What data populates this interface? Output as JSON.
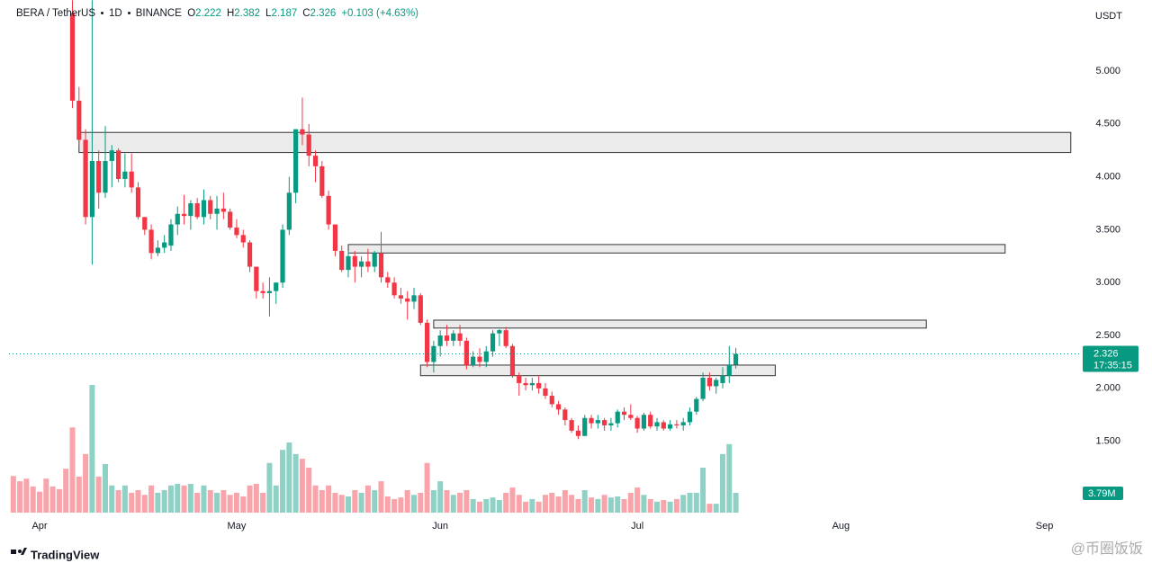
{
  "chart_data": {
    "type": "candlestick",
    "symbol": "BERA / TetherUS",
    "interval": "1D",
    "exchange": "BINANCE",
    "currency": "USDT",
    "ohlc_labels": [
      "O",
      "H",
      "L",
      "C"
    ],
    "change": "+0.103 (+4.63%)",
    "countdown": "17:35:15",
    "volume_label": "3.79M",
    "branding": "TradingView",
    "watermark": "@币圈饭饭",
    "up_color": "#089981",
    "down_color": "#f23645",
    "xlim": [
      -4.66,
      158.4
    ],
    "ylim": [
      0.825,
      5.672
    ],
    "volume_lim": [
      0,
      98
    ],
    "xticks": [
      {
        "value": 0,
        "label": "Apr"
      },
      {
        "value": 30,
        "label": "May"
      },
      {
        "value": 61,
        "label": "Jun"
      },
      {
        "value": 91,
        "label": "Jul"
      },
      {
        "value": 122,
        "label": "Aug"
      },
      {
        "value": 153,
        "label": "Sep"
      }
    ],
    "yticks": [
      {
        "value": 1.5,
        "label": "1.500"
      },
      {
        "value": 2,
        "label": "2.000"
      },
      {
        "value": 2.5,
        "label": "2.500"
      },
      {
        "value": 3,
        "label": "3.000"
      },
      {
        "value": 3.5,
        "label": "3.500"
      },
      {
        "value": 4,
        "label": "4.000"
      },
      {
        "value": 4.5,
        "label": "4.500"
      },
      {
        "value": 5,
        "label": "5.000"
      }
    ],
    "x": [
      -4,
      -3,
      -2,
      -1,
      0,
      1,
      2,
      3,
      4,
      5,
      6,
      7,
      8,
      9,
      10,
      11,
      12,
      13,
      14,
      15,
      16,
      17,
      18,
      19,
      20,
      21,
      22,
      23,
      24,
      25,
      26,
      27,
      28,
      29,
      30,
      31,
      32,
      33,
      34,
      35,
      36,
      37,
      38,
      39,
      40,
      41,
      42,
      43,
      44,
      45,
      46,
      47,
      48,
      49,
      50,
      51,
      52,
      53,
      54,
      55,
      56,
      57,
      58,
      59,
      60,
      61,
      62,
      63,
      64,
      65,
      66,
      67,
      68,
      69,
      70,
      71,
      72,
      73,
      74,
      75,
      76,
      77,
      78,
      79,
      80,
      81,
      82,
      83,
      84,
      85,
      86,
      87,
      88,
      89,
      90,
      91,
      92,
      93,
      94,
      95,
      96,
      97,
      98,
      99,
      100,
      101,
      102,
      103,
      104,
      105,
      106
    ],
    "open": [
      null,
      null,
      null,
      null,
      null,
      null,
      null,
      null,
      null,
      5.55,
      4.72,
      4.35,
      3.62,
      4.15,
      3.85,
      4.15,
      4.25,
      3.98,
      4.05,
      3.9,
      3.62,
      3.5,
      3.28,
      3.33,
      3.35,
      3.55,
      3.65,
      3.63,
      3.75,
      3.62,
      3.78,
      3.65,
      3.7,
      3.67,
      3.52,
      3.45,
      3.38,
      3.15,
      2.92,
      2.9,
      2.92,
      3.0,
      3.5,
      3.85,
      4.45,
      4.4,
      4.2,
      4.1,
      3.82,
      3.55,
      3.3,
      3.12,
      3.25,
      3.15,
      3.2,
      3.15,
      3.28,
      3.05,
      3.0,
      2.88,
      2.85,
      2.82,
      2.88,
      2.62,
      2.25,
      2.4,
      2.5,
      2.45,
      2.52,
      2.45,
      2.22,
      2.3,
      2.25,
      2.35,
      2.52,
      2.55,
      2.4,
      2.12,
      2.05,
      2.03,
      2.05,
      2.0,
      1.93,
      1.85,
      1.8,
      1.7,
      1.6,
      1.55,
      1.72,
      1.67,
      1.7,
      1.65,
      1.67,
      1.78,
      1.75,
      1.72,
      1.62,
      1.75,
      1.64,
      1.68,
      1.62,
      1.66,
      1.65,
      1.68,
      1.78,
      1.9,
      2.1,
      2.02,
      2.05,
      2.12,
      2.222
    ],
    "high": [
      null,
      null,
      null,
      null,
      null,
      null,
      null,
      null,
      null,
      5.67,
      4.85,
      4.45,
      5.67,
      4.25,
      4.48,
      4.3,
      4.27,
      4.22,
      4.22,
      3.95,
      3.62,
      3.55,
      3.4,
      3.45,
      3.6,
      3.72,
      3.83,
      3.78,
      3.8,
      3.88,
      3.82,
      3.82,
      3.85,
      3.7,
      3.6,
      3.5,
      3.4,
      3.15,
      3.0,
      3.05,
      3.0,
      3.55,
      4.0,
      4.45,
      4.75,
      4.5,
      4.25,
      4.15,
      3.87,
      3.55,
      3.35,
      3.3,
      3.3,
      3.25,
      3.32,
      3.3,
      3.48,
      3.1,
      3.05,
      2.95,
      2.92,
      2.95,
      2.9,
      2.65,
      2.45,
      2.55,
      2.6,
      2.55,
      2.6,
      2.48,
      2.35,
      2.38,
      2.4,
      2.55,
      2.56,
      2.58,
      2.42,
      2.15,
      2.1,
      2.1,
      2.12,
      2.05,
      1.97,
      1.88,
      1.82,
      1.72,
      1.65,
      1.75,
      1.75,
      1.75,
      1.72,
      1.72,
      1.8,
      1.82,
      1.85,
      1.74,
      1.77,
      1.78,
      1.72,
      1.7,
      1.7,
      1.7,
      1.72,
      1.82,
      1.92,
      2.15,
      2.15,
      2.1,
      2.2,
      2.4,
      2.382
    ],
    "low": [
      null,
      null,
      null,
      null,
      null,
      null,
      null,
      null,
      null,
      4.65,
      4.3,
      3.55,
      3.17,
      3.7,
      3.8,
      3.9,
      3.95,
      3.9,
      3.85,
      3.6,
      3.45,
      3.22,
      3.25,
      3.28,
      3.3,
      3.45,
      3.55,
      3.5,
      3.6,
      3.55,
      3.6,
      3.5,
      3.6,
      3.5,
      3.42,
      3.33,
      3.1,
      2.85,
      2.85,
      2.68,
      2.8,
      2.95,
      3.45,
      3.75,
      4.3,
      4.1,
      3.95,
      3.8,
      3.5,
      3.25,
      3.1,
      3.05,
      3.0,
      3.05,
      3.1,
      3.1,
      3.0,
      2.95,
      2.85,
      2.8,
      2.65,
      2.75,
      2.6,
      2.2,
      2.15,
      2.3,
      2.4,
      2.4,
      2.4,
      2.18,
      2.2,
      2.2,
      2.2,
      2.3,
      2.4,
      2.38,
      2.1,
      1.93,
      1.98,
      1.98,
      1.95,
      1.9,
      1.82,
      1.75,
      1.65,
      1.58,
      1.52,
      1.55,
      1.62,
      1.62,
      1.6,
      1.6,
      1.63,
      1.7,
      1.7,
      1.58,
      1.6,
      1.62,
      1.6,
      1.6,
      1.6,
      1.62,
      1.6,
      1.65,
      1.75,
      1.88,
      1.98,
      1.95,
      2.0,
      2.05,
      2.187
    ],
    "close": [
      null,
      null,
      null,
      null,
      null,
      null,
      null,
      null,
      null,
      4.72,
      4.35,
      3.62,
      4.15,
      3.85,
      4.15,
      4.25,
      3.98,
      4.05,
      3.9,
      3.62,
      3.5,
      3.28,
      3.33,
      3.38,
      3.55,
      3.65,
      3.63,
      3.75,
      3.62,
      3.78,
      3.65,
      3.7,
      3.67,
      3.52,
      3.45,
      3.38,
      3.15,
      2.92,
      2.9,
      2.92,
      3.0,
      3.5,
      3.85,
      4.45,
      4.4,
      4.2,
      4.1,
      3.82,
      3.55,
      3.3,
      3.12,
      3.25,
      3.15,
      3.2,
      3.15,
      3.28,
      3.05,
      3.0,
      2.88,
      2.85,
      2.82,
      2.88,
      2.62,
      2.25,
      2.4,
      2.5,
      2.45,
      2.52,
      2.45,
      2.22,
      2.3,
      2.25,
      2.35,
      2.52,
      2.55,
      2.4,
      2.12,
      2.05,
      2.03,
      2.05,
      2.0,
      1.93,
      1.85,
      1.8,
      1.7,
      1.6,
      1.55,
      1.72,
      1.67,
      1.7,
      1.65,
      1.67,
      1.78,
      1.75,
      1.72,
      1.62,
      1.75,
      1.64,
      1.68,
      1.62,
      1.66,
      1.65,
      1.68,
      1.78,
      1.9,
      2.1,
      2.02,
      2.08,
      2.12,
      2.22,
      2.326
    ],
    "volume": [
      7,
      6,
      6.5,
      5,
      4,
      6.5,
      5,
      4.5,
      8.4,
      16.3,
      6.9,
      11.2,
      24.4,
      6.9,
      9.3,
      5.2,
      4.3,
      5.2,
      3.8,
      4.3,
      3.4,
      5.2,
      3.8,
      4.3,
      5.2,
      5.5,
      5.2,
      5.5,
      3.8,
      5.2,
      4.3,
      3.8,
      4.3,
      3.4,
      3.8,
      3.1,
      5.2,
      5.5,
      3.8,
      9.5,
      5.2,
      12,
      13.4,
      11.2,
      10.3,
      8.6,
      5.2,
      4.3,
      5.2,
      3.8,
      3.4,
      3.1,
      4.3,
      3.8,
      5.2,
      4.3,
      6.0,
      3.1,
      2.6,
      2.9,
      4.3,
      3.4,
      3.8,
      9.5,
      4.3,
      6.0,
      4.3,
      3.4,
      3.8,
      4.3,
      2.6,
      2.1,
      2.6,
      2.9,
      2.4,
      3.8,
      4.8,
      3.4,
      2.1,
      2.6,
      2.1,
      3.4,
      3.8,
      3.1,
      4.3,
      3.4,
      2.6,
      4.3,
      2.9,
      2.6,
      3.4,
      2.9,
      3.1,
      2.6,
      3.8,
      4.8,
      3.4,
      2.6,
      2.1,
      2.4,
      2.1,
      2.6,
      3.4,
      3.8,
      3.8,
      8.6,
      1.7,
      1.7,
      11.2,
      13.1,
      3.79
    ],
    "zones": [
      {
        "x": [
          6,
          157
        ],
        "y": [
          4.23,
          4.42
        ]
      },
      {
        "x": [
          47,
          147
        ],
        "y": [
          3.28,
          3.36
        ]
      },
      {
        "x": [
          60,
          135
        ],
        "y": [
          2.57,
          2.645
        ]
      },
      {
        "x": [
          58,
          112
        ],
        "y": [
          2.12,
          2.22
        ]
      }
    ]
  }
}
